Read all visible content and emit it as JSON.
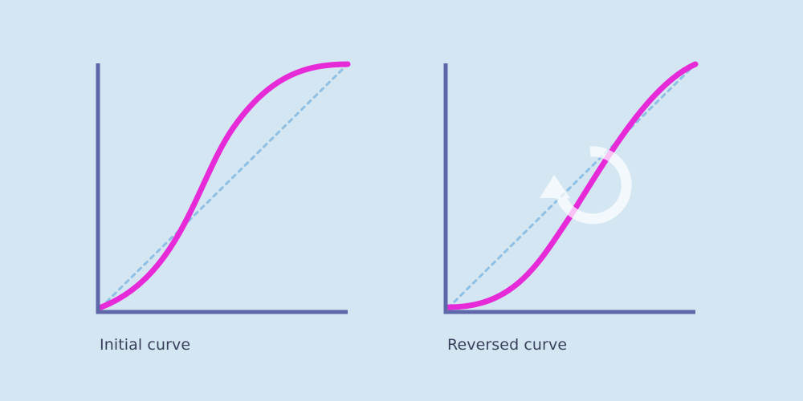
{
  "colors": {
    "background": "#d3e6f2",
    "axis": "#5e68a8",
    "curve": "#e62ad8",
    "reference_line": "#8fc0e4",
    "rotation_arrow": "#ffffff",
    "caption_text": "#3a3f5c"
  },
  "panels": [
    {
      "caption": "Initial curve",
      "curve_shape": "ease-in-out",
      "show_rotation_icon": false
    },
    {
      "caption": "Reversed curve",
      "curve_shape": "reversed ease-in-out",
      "show_rotation_icon": true
    }
  ],
  "icons": {
    "rotation": "rotate-counterclockwise-arrow-icon"
  }
}
